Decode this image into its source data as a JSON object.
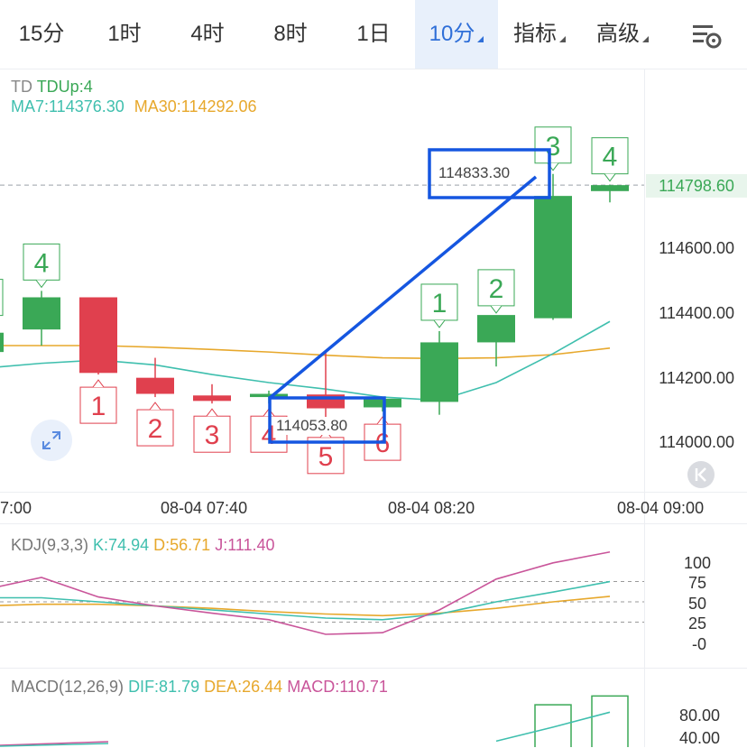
{
  "tabs": [
    {
      "label": "15分",
      "active": false,
      "dropdown": false
    },
    {
      "label": "1时",
      "active": false,
      "dropdown": false
    },
    {
      "label": "4时",
      "active": false,
      "dropdown": false
    },
    {
      "label": "8时",
      "active": false,
      "dropdown": false
    },
    {
      "label": "1日",
      "active": false,
      "dropdown": false
    },
    {
      "label": "10分",
      "active": true,
      "dropdown": true
    },
    {
      "label": "指标",
      "active": false,
      "dropdown": true
    },
    {
      "label": "高级",
      "active": false,
      "dropdown": true
    }
  ],
  "settings_icon": "chart-settings-icon",
  "main_legend": {
    "td_label": "TD",
    "td_value": "TDUp:4",
    "ma7": "MA7:114376.30",
    "ma30": "MA30:114292.06"
  },
  "price_axis": [
    "114600.00",
    "114400.00",
    "114200.00",
    "114000.00"
  ],
  "current_price": "114798.60",
  "high_label": "114833.30",
  "low_label": "114053.80",
  "time_axis": [
    "7:00",
    "08-04 07:40",
    "08-04 08:20",
    "08-04 09:00"
  ],
  "kdj_legend": {
    "name": "KDJ(9,3,3)",
    "k": "K:74.94",
    "d": "D:56.71",
    "j": "J:111.40"
  },
  "kdj_axis": [
    "100",
    "75",
    "50",
    "25",
    "-0"
  ],
  "macd_legend": {
    "name": "MACD(12,26,9)",
    "dif": "DIF:81.79",
    "dea": "DEA:26.44",
    "macd": "MACD:110.71"
  },
  "macd_axis": [
    "80.00",
    "40.00"
  ],
  "colors": {
    "up": "#3aa856",
    "down": "#e0404e",
    "accent": "#2f6fd8",
    "ma7": "#3fbfae",
    "ma30": "#e7a82c",
    "j_line": "#c9559a",
    "annotation": "#1556e0"
  },
  "chart_data": {
    "type": "candlestick",
    "interval": "10分",
    "y_range": [
      113900,
      114900
    ],
    "candles": [
      {
        "o": 114280,
        "h": 114360,
        "l": 114250,
        "c": 114340,
        "dir": "up"
      },
      {
        "o": 114350,
        "h": 114470,
        "l": 114300,
        "c": 114450,
        "dir": "up"
      },
      {
        "o": 114450,
        "h": 114450,
        "l": 114210,
        "c": 114215,
        "dir": "down"
      },
      {
        "o": 114200,
        "h": 114262,
        "l": 114140,
        "c": 114150,
        "dir": "down"
      },
      {
        "o": 114145,
        "h": 114180,
        "l": 114120,
        "c": 114128,
        "dir": "down"
      },
      {
        "o": 114140,
        "h": 114160,
        "l": 114120,
        "c": 114150,
        "dir": "up"
      },
      {
        "o": 114148,
        "h": 114278,
        "l": 114053.8,
        "c": 114105,
        "dir": "down"
      },
      {
        "o": 114108,
        "h": 114140,
        "l": 114095,
        "c": 114135,
        "dir": "up"
      },
      {
        "o": 114125,
        "h": 114345,
        "l": 114085,
        "c": 114310,
        "dir": "up"
      },
      {
        "o": 114310,
        "h": 114390,
        "l": 114235,
        "c": 114395,
        "dir": "up"
      },
      {
        "o": 114385,
        "h": 114833.3,
        "l": 114380,
        "c": 114765,
        "dir": "up"
      },
      {
        "o": 114780,
        "h": 114800,
        "l": 114745,
        "c": 114798.6,
        "dir": "up"
      }
    ],
    "td_marks": [
      {
        "i": 0,
        "n": "",
        "pos": "above",
        "dir": "up"
      },
      {
        "i": 1,
        "n": "4",
        "pos": "above",
        "dir": "up"
      },
      {
        "i": 2,
        "n": "1",
        "pos": "below",
        "dir": "down"
      },
      {
        "i": 3,
        "n": "2",
        "pos": "below",
        "dir": "down"
      },
      {
        "i": 4,
        "n": "3",
        "pos": "below",
        "dir": "down"
      },
      {
        "i": 5,
        "n": "4",
        "pos": "below",
        "dir": "down"
      },
      {
        "i": 6,
        "n": "5",
        "pos": "below",
        "dir": "down"
      },
      {
        "i": 7,
        "n": "6",
        "pos": "below",
        "dir": "down"
      },
      {
        "i": 8,
        "n": "1",
        "pos": "above",
        "dir": "up"
      },
      {
        "i": 9,
        "n": "2",
        "pos": "above",
        "dir": "up"
      },
      {
        "i": 10,
        "n": "3",
        "pos": "above",
        "dir": "up"
      },
      {
        "i": 11,
        "n": "4",
        "pos": "above",
        "dir": "up"
      }
    ],
    "ma7": [
      114230,
      114245,
      114255,
      114240,
      114210,
      114185,
      114165,
      114140,
      114130,
      114185,
      114275,
      114375
    ],
    "ma30": [
      114300,
      114300,
      114300,
      114295,
      114288,
      114280,
      114270,
      114262,
      114260,
      114262,
      114272,
      114292
    ],
    "kdj": {
      "k": [
        55,
        55,
        50,
        45,
        40,
        35,
        30,
        28,
        35,
        50,
        62,
        74.94
      ],
      "d": [
        45,
        47,
        47,
        45,
        42,
        38,
        35,
        33,
        36,
        42,
        50,
        56.71
      ],
      "j": [
        65,
        80,
        56,
        45,
        36,
        28,
        10,
        12,
        40,
        78,
        98,
        111.4
      ]
    },
    "macd_hist": [
      0,
      0,
      0,
      0,
      0,
      0,
      0,
      0,
      0,
      0,
      95,
      110.71
    ],
    "macd_dif": [
      0,
      0,
      0,
      0,
      0,
      0,
      0,
      0,
      0,
      30,
      55,
      81.79
    ]
  }
}
